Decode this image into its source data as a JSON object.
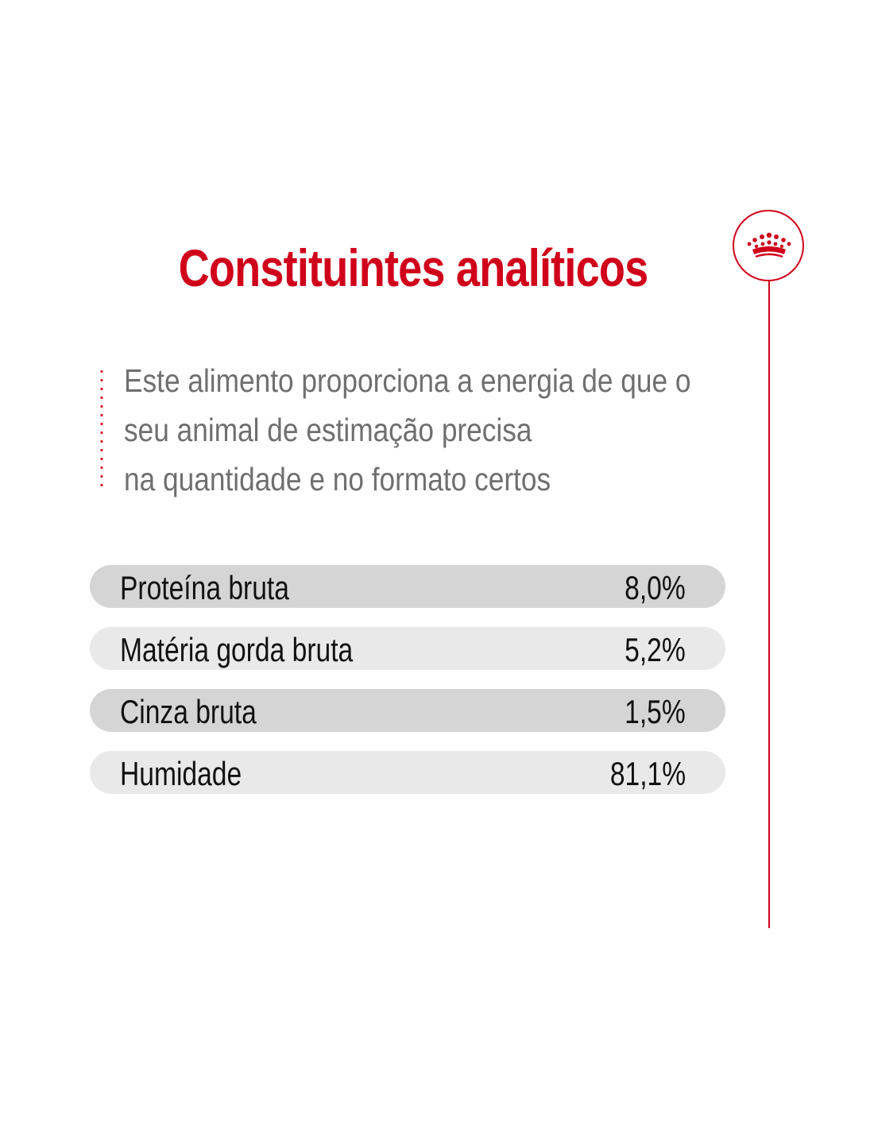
{
  "title": "Constituintes analíticos",
  "intro": {
    "line1": "Este alimento proporciona a energia de que o",
    "line2": "seu animal de estimação precisa",
    "line3": "na quantidade e no formato certos"
  },
  "constituents": [
    {
      "label": "Proteína bruta",
      "value": "8,0%"
    },
    {
      "label": "Matéria gorda bruta",
      "value": "5,2%"
    },
    {
      "label": "Cinza bruta",
      "value": "1,5%"
    },
    {
      "label": "Humidade",
      "value": "81,1%"
    }
  ],
  "colors": {
    "accent": "#d0021b",
    "row_dark": "#d5d5d5",
    "row_light": "#e9e9e9",
    "intro_text": "#6f6f6f"
  },
  "icons": {
    "emblem": "crown-icon"
  }
}
